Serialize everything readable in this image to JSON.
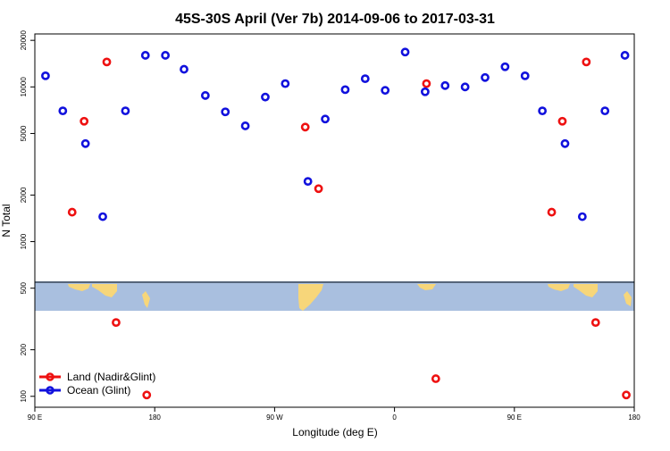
{
  "chart_data": {
    "type": "scatter",
    "title": "45S-30S April (Ver 7b)   2014-09-06 to 2017-03-31",
    "xlabel": "Longitude (deg E)",
    "ylabel": "N Total",
    "x_scale": "longitude",
    "y_scale": "log",
    "xlim": [
      90,
      540
    ],
    "ylim": [
      85,
      22000
    ],
    "x_ticks": [
      {
        "value": 90,
        "label": "90 E"
      },
      {
        "value": 180,
        "label": "180"
      },
      {
        "value": 270,
        "label": "90 W"
      },
      {
        "value": 360,
        "label": "0"
      },
      {
        "value": 450,
        "label": "90 E"
      },
      {
        "value": 540,
        "label": "180"
      }
    ],
    "y_ticks": [
      {
        "value": 100,
        "label": "100"
      },
      {
        "value": 200,
        "label": "200"
      },
      {
        "value": 500,
        "label": "500"
      },
      {
        "value": 1000,
        "label": "1000"
      },
      {
        "value": 2000,
        "label": "2000"
      },
      {
        "value": 5000,
        "label": "5000"
      },
      {
        "value": 10000,
        "label": "10000"
      },
      {
        "value": 20000,
        "label": "20000"
      }
    ],
    "grid": false,
    "legend_position": "bottom-left",
    "colors": {
      "land": "#ee1111",
      "ocean": "#1111dd",
      "map_ocean": "#a9bfdf",
      "map_land": "#f7d67a"
    },
    "series": [
      {
        "name": "Land (Nadir&Glint)",
        "color": "#ee1111",
        "points": [
          {
            "x": 118,
            "y": 1550
          },
          {
            "x": 127,
            "y": 6000
          },
          {
            "x": 144,
            "y": 14500
          },
          {
            "x": 151,
            "y": 300
          },
          {
            "x": 174,
            "y": 102
          },
          {
            "x": 293,
            "y": 5500
          },
          {
            "x": 303,
            "y": 2200
          },
          {
            "x": 384,
            "y": 10500
          },
          {
            "x": 391,
            "y": 130
          },
          {
            "x": 478,
            "y": 1550
          },
          {
            "x": 486,
            "y": 6000
          },
          {
            "x": 504,
            "y": 14500
          },
          {
            "x": 511,
            "y": 300
          },
          {
            "x": 534,
            "y": 102
          }
        ]
      },
      {
        "name": "Ocean (Glint)",
        "color": "#1111dd",
        "points": [
          {
            "x": 98,
            "y": 11800
          },
          {
            "x": 111,
            "y": 7000
          },
          {
            "x": 128,
            "y": 4300
          },
          {
            "x": 141,
            "y": 1450
          },
          {
            "x": 158,
            "y": 7000
          },
          {
            "x": 173,
            "y": 16000
          },
          {
            "x": 188,
            "y": 16000
          },
          {
            "x": 202,
            "y": 13000
          },
          {
            "x": 218,
            "y": 8800
          },
          {
            "x": 233,
            "y": 6900
          },
          {
            "x": 248,
            "y": 5600
          },
          {
            "x": 263,
            "y": 8600
          },
          {
            "x": 278,
            "y": 10500
          },
          {
            "x": 295,
            "y": 2450
          },
          {
            "x": 308,
            "y": 6200
          },
          {
            "x": 323,
            "y": 9600
          },
          {
            "x": 338,
            "y": 11300
          },
          {
            "x": 353,
            "y": 9500
          },
          {
            "x": 368,
            "y": 16800
          },
          {
            "x": 383,
            "y": 9300
          },
          {
            "x": 398,
            "y": 10200
          },
          {
            "x": 413,
            "y": 10000
          },
          {
            "x": 428,
            "y": 11500
          },
          {
            "x": 443,
            "y": 13500
          },
          {
            "x": 458,
            "y": 11800
          },
          {
            "x": 471,
            "y": 7000
          },
          {
            "x": 488,
            "y": 4300
          },
          {
            "x": 501,
            "y": 1450
          },
          {
            "x": 518,
            "y": 7000
          },
          {
            "x": 533,
            "y": 16000
          }
        ]
      }
    ]
  }
}
